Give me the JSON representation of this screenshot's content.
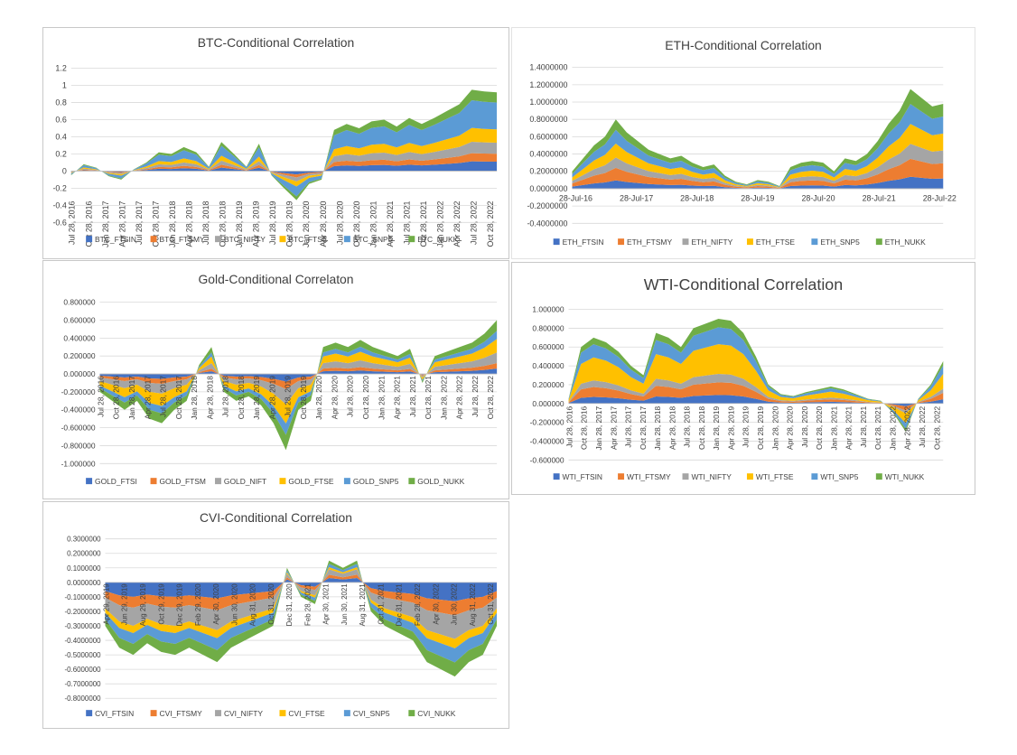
{
  "colors": {
    "FTSIN": "#4472c4",
    "FTSMY": "#ed7d31",
    "NIFTY": "#a5a5a5",
    "FTSE": "#ffc000",
    "SNP5": "#5b9bd5",
    "NUKK": "#70ad47"
  },
  "chart_data": [
    {
      "id": "btc",
      "type": "area",
      "title": "BTC-Conditional Correlation",
      "ylim": [
        -0.6,
        1.2
      ],
      "y_ticks": [
        "1.2",
        "1",
        "0.8",
        "0.6",
        "0.4",
        "0.2",
        "0",
        "-0.2",
        "-0.4",
        "-0.6"
      ],
      "x_ticks": [
        "Jul 28, 2016",
        "Oct 28, 2016",
        "Jan 28, 2017",
        "Apr 28, 2017",
        "Jul 28, 2017",
        "Oct 28, 2017",
        "Jan 28, 2018",
        "Apr 28, 2018",
        "Jul 28, 2018",
        "Oct 28, 2018",
        "Jan 28, 2019",
        "Apr 28, 2019",
        "Jul 28, 2019",
        "Oct 28, 2019",
        "Jan 28, 2020",
        "Apr 28, 2020",
        "Jul 28, 2020",
        "Oct 28, 2020",
        "Jan 28, 2021",
        "Apr 28, 2021",
        "Jul 28, 2021",
        "Oct 28, 2021",
        "Jan 28, 2022",
        "Apr 28, 2022",
        "Jul 28, 2022",
        "Oct 28, 2022"
      ],
      "legend": [
        "BTC_FTSIN",
        "BTC_FTSMY",
        "BTC_NIFTY",
        "BTC_FTSE",
        "BTC_SNP5",
        "BTC_NUKK"
      ],
      "totals": [
        -0.05,
        0.08,
        0.04,
        -0.06,
        -0.1,
        0.02,
        0.1,
        0.22,
        0.2,
        0.28,
        0.22,
        0.05,
        0.34,
        0.2,
        0.05,
        0.32,
        -0.05,
        -0.2,
        -0.34,
        -0.15,
        -0.1,
        0.48,
        0.55,
        0.5,
        0.58,
        0.6,
        0.52,
        0.62,
        0.55,
        0.62,
        0.7,
        0.78,
        0.95,
        0.93,
        0.92
      ],
      "shares": [
        0.12,
        0.1,
        0.14,
        0.17,
        0.34,
        0.13
      ]
    },
    {
      "id": "eth",
      "type": "area",
      "title": "ETH-Conditional Correlation",
      "ylim": [
        -0.4,
        1.4
      ],
      "y_ticks": [
        "1.4000000",
        "1.2000000",
        "1.0000000",
        "0.8000000",
        "0.6000000",
        "0.4000000",
        "0.2000000",
        "0.0000000",
        "-0.2000000",
        "-0.4000000"
      ],
      "x_ticks": [
        "28-Jul-16",
        "28-Jul-17",
        "28-Jul-18",
        "28-Jul-19",
        "28-Jul-20",
        "28-Jul-21",
        "28-Jul-22"
      ],
      "legend": [
        "ETH_FTSIN",
        "ETH_FTSMY",
        "ETH_NIFTY",
        "ETH_FTSE",
        "ETH_SNP5",
        "ETH_NUKK"
      ],
      "totals": [
        0.2,
        0.35,
        0.5,
        0.6,
        0.8,
        0.65,
        0.55,
        0.45,
        0.4,
        0.35,
        0.38,
        0.3,
        0.25,
        0.28,
        0.15,
        0.08,
        0.05,
        0.1,
        0.08,
        0.03,
        0.25,
        0.3,
        0.32,
        0.3,
        0.2,
        0.35,
        0.32,
        0.4,
        0.55,
        0.75,
        0.9,
        1.15,
        1.05,
        0.95,
        0.98
      ],
      "shares": [
        0.12,
        0.18,
        0.15,
        0.2,
        0.2,
        0.15
      ]
    },
    {
      "id": "gold",
      "type": "area",
      "title": "Gold-Conditional Correlaton",
      "ylim": [
        -1.0,
        0.8
      ],
      "y_ticks": [
        "0.800000",
        "0.600000",
        "0.400000",
        "0.200000",
        "0.000000",
        "-0.200000",
        "-0.400000",
        "-0.600000",
        "-0.800000",
        "-1.000000"
      ],
      "x_ticks": [
        "Jul 28, 2016",
        "Oct 28, 2016",
        "Jan 28, 2017",
        "Apr 28, 2017",
        "Jul 28, 2017",
        "Oct 28, 2017",
        "Jan 28, 2018",
        "Apr 28, 2018",
        "Jul 28, 2018",
        "Oct 28, 2018",
        "Jan 28, 2019",
        "Apr 28, 2019",
        "Jul 28, 2019",
        "Oct 28, 2019",
        "Jan 28, 2020",
        "Apr 28, 2020",
        "Jul 28, 2020",
        "Oct 28, 2020",
        "Jan 28, 2021",
        "Apr 28, 2021",
        "Jul 28, 2021",
        "Oct 28, 2021",
        "Jan 28, 2022",
        "Apr 28, 2022",
        "Jul 28, 2022",
        "Oct 28, 2022"
      ],
      "legend": [
        "GOLD_FTSI",
        "GOLD_FTSM",
        "GOLD_NIFT",
        "GOLD_FTSE",
        "GOLD_SNP5",
        "GOLD_NUKK"
      ],
      "totals": [
        -0.2,
        -0.3,
        -0.4,
        -0.3,
        -0.5,
        -0.55,
        -0.4,
        -0.3,
        0.1,
        0.3,
        -0.2,
        -0.3,
        -0.25,
        -0.35,
        -0.55,
        -0.85,
        -0.4,
        -0.3,
        0.3,
        0.35,
        0.3,
        0.38,
        0.3,
        0.25,
        0.2,
        0.28,
        -0.1,
        0.2,
        0.25,
        0.3,
        0.35,
        0.45,
        0.6
      ],
      "shares": [
        0.1,
        0.1,
        0.2,
        0.25,
        0.15,
        0.2
      ]
    },
    {
      "id": "wti",
      "type": "area",
      "title": "WTI-Conditional Correlation",
      "ylim": [
        -0.6,
        1.0
      ],
      "y_ticks": [
        "1.000000",
        "0.800000",
        "0.600000",
        "0.400000",
        "0.200000",
        "0.000000",
        "-0.200000",
        "-0.400000",
        "-0.600000"
      ],
      "x_ticks": [
        "Jul 28, 2016",
        "Oct 28, 2016",
        "Jan 28, 2017",
        "Apr 28, 2017",
        "Jul 28, 2017",
        "Oct 28, 2017",
        "Jan 28, 2018",
        "Apr 28, 2018",
        "Jul 28, 2018",
        "Oct 28, 2018",
        "Jan 28, 2019",
        "Apr 28, 2019",
        "Jul 28, 2019",
        "Oct 28, 2019",
        "Jan 28, 2020",
        "Apr 28, 2020",
        "Jul 28, 2020",
        "Oct 28, 2020",
        "Jan 28, 2021",
        "Apr 28, 2021",
        "Jul 28, 2021",
        "Oct 28, 2021",
        "Jan 28, 2022",
        "Apr 28, 2022",
        "Jul 28, 2022",
        "Oct 28, 2022"
      ],
      "legend": [
        "WTI_FTSIN",
        "WTI_FTSMY",
        "WTI_NIFTY",
        "WTI_FTSE",
        "WTI_SNP5",
        "WTI_NUKK"
      ],
      "totals": [
        0.05,
        0.6,
        0.7,
        0.65,
        0.55,
        0.4,
        0.3,
        0.75,
        0.7,
        0.6,
        0.8,
        0.85,
        0.9,
        0.88,
        0.75,
        0.5,
        0.2,
        0.1,
        0.08,
        0.12,
        0.15,
        0.18,
        0.15,
        0.1,
        0.05,
        0.03,
        -0.1,
        -0.3,
        0.05,
        0.2,
        0.45
      ],
      "shares": [
        0.1,
        0.15,
        0.1,
        0.35,
        0.2,
        0.1
      ]
    },
    {
      "id": "cvi",
      "type": "area",
      "title": "CVI-Conditional Correlation",
      "ylim": [
        -0.8,
        0.3
      ],
      "y_ticks": [
        "0.3000000",
        "0.2000000",
        "0.1000000",
        "0.0000000",
        "-0.1000000",
        "-0.2000000",
        "-0.3000000",
        "-0.4000000",
        "-0.5000000",
        "-0.6000000",
        "-0.7000000",
        "-0.8000000"
      ],
      "x_ticks": [
        "Apr 29, 2019",
        "Jun 29, 2019",
        "Aug 29, 2019",
        "Oct 29, 2019",
        "Dec 29, 2019",
        "Feb 29, 2020",
        "Apr 30, 2020",
        "Jun 30, 2020",
        "Aug 31, 2020",
        "Oct 31, 2020",
        "Dec 31, 2020",
        "Feb 28, 2021",
        "Apr 30, 2021",
        "Jun 30, 2021",
        "Aug 31, 2021",
        "Oct 31, 2021",
        "Dec 31, 2021",
        "Feb 28, 2022",
        "Apr 30, 2022",
        "Jun 30, 2022",
        "Aug 31, 2022",
        "Oct 31, 2022"
      ],
      "legend": [
        "CVI_FTSIN",
        "CVI_FTSMY",
        "CVI_NIFTY",
        "CVI_FTSE",
        "CVI_SNP5",
        "CVI_NUKK"
      ],
      "totals": [
        -0.3,
        -0.45,
        -0.5,
        -0.42,
        -0.48,
        -0.5,
        -0.45,
        -0.5,
        -0.55,
        -0.45,
        -0.4,
        -0.35,
        -0.3,
        0.1,
        -0.1,
        -0.15,
        0.15,
        0.1,
        0.15,
        -0.2,
        -0.3,
        -0.35,
        -0.4,
        -0.55,
        -0.6,
        -0.65,
        -0.55,
        -0.5,
        -0.3
      ],
      "shares": [
        0.2,
        0.15,
        0.25,
        0.1,
        0.15,
        0.15
      ]
    }
  ]
}
